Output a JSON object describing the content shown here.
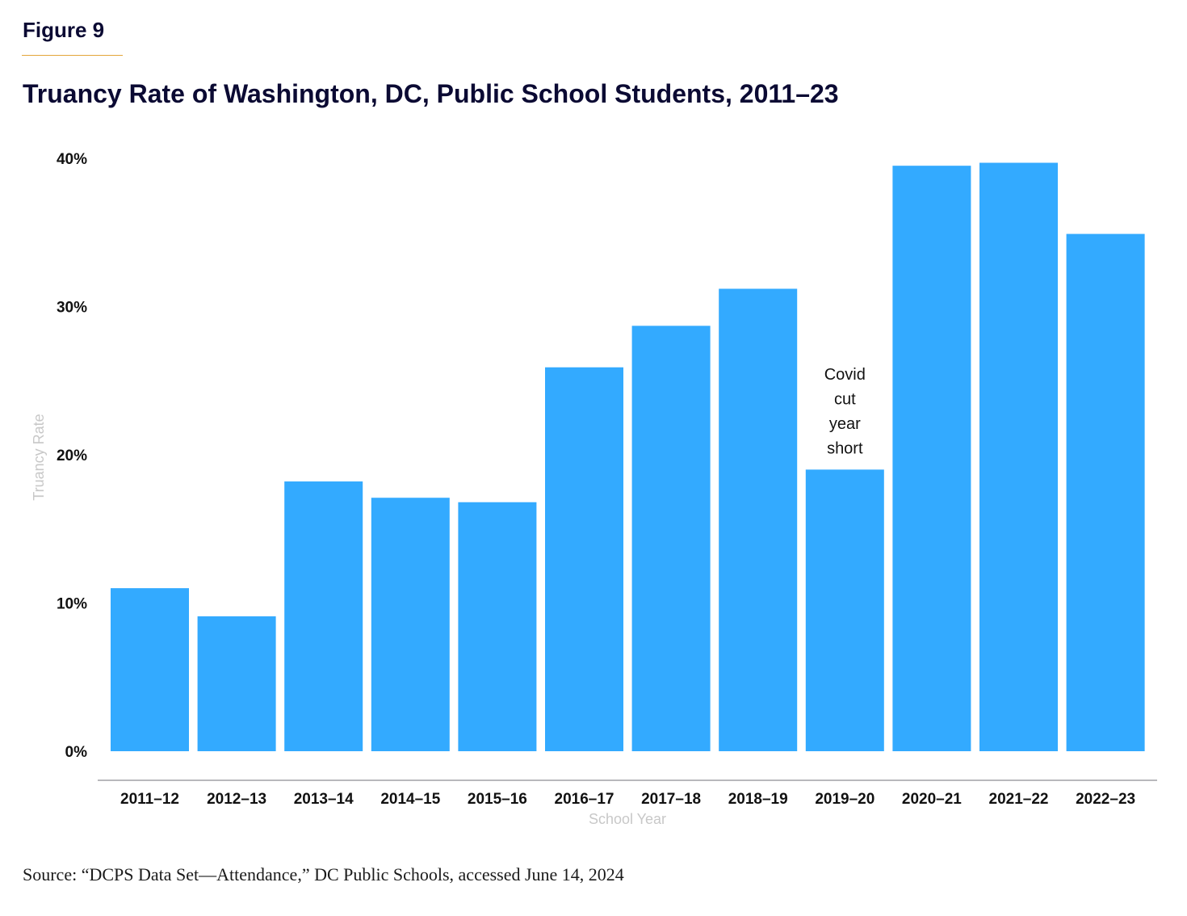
{
  "figure_label": "Figure 9",
  "source": "Source: “DCPS Data Set—Attendance,” DC Public Schools, accessed June 14, 2024",
  "colors": {
    "bar": "#33aaff",
    "heading": "#0b0a33",
    "rule": "#e3a53a",
    "axis_title": "#c8c8c8",
    "baseline": "#b8b8bc"
  },
  "chart_data": {
    "type": "bar",
    "title": "Truancy Rate of Washington, DC, Public School Students, 2011–23",
    "xlabel": "School Year",
    "ylabel": "Truancy Rate",
    "ylim": [
      0,
      40
    ],
    "yticks": [
      0,
      10,
      20,
      30,
      40
    ],
    "ytick_labels": [
      "0%",
      "10%",
      "20%",
      "30%",
      "40%"
    ],
    "grid": false,
    "categories": [
      "2011–12",
      "2012–13",
      "2013–14",
      "2014–15",
      "2015–16",
      "2016–17",
      "2017–18",
      "2018–19",
      "2019–20",
      "2020–21",
      "2021–22",
      "2022–23"
    ],
    "values": [
      11.0,
      9.1,
      18.2,
      17.1,
      16.8,
      25.9,
      28.7,
      31.2,
      19.0,
      39.5,
      39.7,
      34.9
    ],
    "annotations": [
      {
        "category": "2019–20",
        "lines": [
          "Covid",
          "cut",
          "year",
          "short"
        ]
      }
    ]
  }
}
